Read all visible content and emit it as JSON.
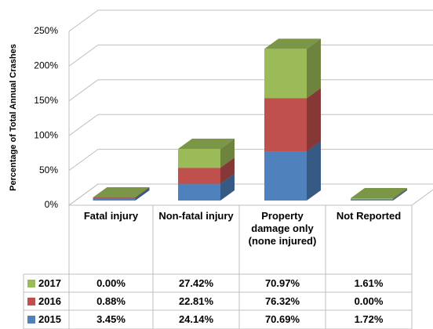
{
  "chart_data": {
    "type": "bar",
    "stacked": true,
    "y_label": "Percentage of Total Annual Crashes",
    "categories": [
      "Fatal injury",
      "Non-fatal injury",
      "Property damage only (none injured)",
      "Not Reported"
    ],
    "series": [
      {
        "name": "2015",
        "color": "#4f81bd",
        "values": [
          3.45,
          24.14,
          70.69,
          1.72
        ],
        "value_labels": [
          "3.45%",
          "24.14%",
          "70.69%",
          "1.72%"
        ]
      },
      {
        "name": "2016",
        "color": "#c0504d",
        "values": [
          0.88,
          22.81,
          76.32,
          0.0
        ],
        "value_labels": [
          "0.88%",
          "22.81%",
          "76.32%",
          "0.00%"
        ]
      },
      {
        "name": "2017",
        "color": "#9bbb59",
        "values": [
          0.0,
          27.42,
          70.97,
          1.61
        ],
        "value_labels": [
          "0.00%",
          "27.42%",
          "70.97%",
          "1.61%"
        ]
      }
    ],
    "ylim": [
      0,
      250
    ],
    "yticks": [
      {
        "value": 0,
        "label": "0%"
      },
      {
        "value": 50,
        "label": "50%"
      },
      {
        "value": 100,
        "label": "100%"
      },
      {
        "value": 150,
        "label": "150%"
      },
      {
        "value": 200,
        "label": "200%"
      },
      {
        "value": 250,
        "label": "250%"
      }
    ],
    "grid": true
  }
}
